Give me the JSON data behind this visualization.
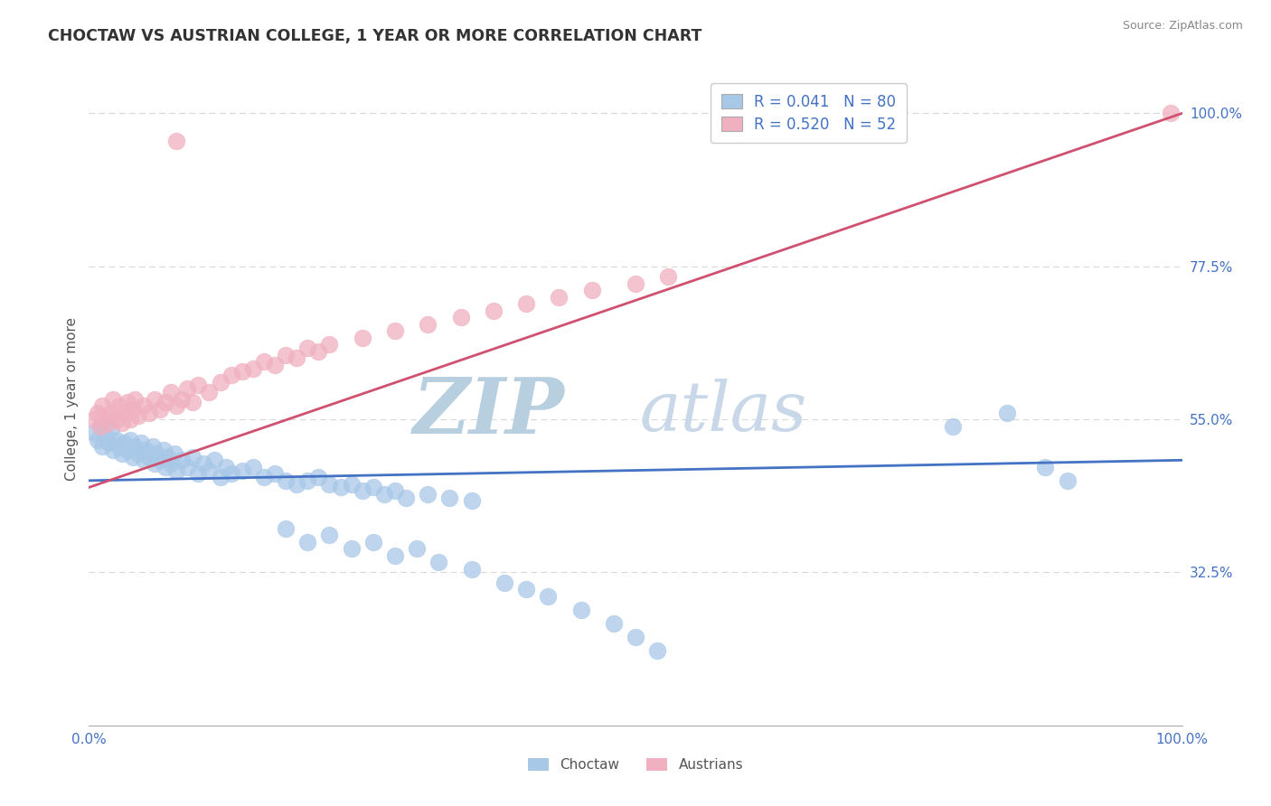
{
  "title": "CHOCTAW VS AUSTRIAN COLLEGE, 1 YEAR OR MORE CORRELATION CHART",
  "source_text": "Source: ZipAtlas.com",
  "ylabel": "College, 1 year or more",
  "xlim": [
    0.0,
    1.0
  ],
  "ylim": [
    0.1,
    1.06
  ],
  "x_tick_labels": [
    "0.0%",
    "100.0%"
  ],
  "y_ticks_right": [
    0.325,
    0.55,
    0.775,
    1.0
  ],
  "y_tick_labels_right": [
    "32.5%",
    "55.0%",
    "77.5%",
    "100.0%"
  ],
  "choctaw_color": "#a8c8e8",
  "austrians_color": "#f0b0c0",
  "choctaw_line_color": "#4472c4",
  "austrians_line_color": "#d05070",
  "legend_label_1": "R = 0.041   N = 80",
  "legend_label_2": "R = 0.520   N = 52",
  "grid_color": "#d8d8d8",
  "background_color": "#ffffff",
  "watermark_zip": "ZIP",
  "watermark_atlas": "atlas",
  "watermark_color_zip": "#b8cfe0",
  "watermark_color_atlas": "#c8d8e8",
  "bottom_legend_1": "Choctaw",
  "bottom_legend_2": "Austrians",
  "choctaw_x": [
    0.005,
    0.008,
    0.01,
    0.012,
    0.015,
    0.018,
    0.02,
    0.022,
    0.025,
    0.028,
    0.03,
    0.032,
    0.035,
    0.038,
    0.04,
    0.042,
    0.045,
    0.048,
    0.05,
    0.052,
    0.055,
    0.058,
    0.06,
    0.062,
    0.065,
    0.068,
    0.07,
    0.072,
    0.075,
    0.078,
    0.08,
    0.085,
    0.09,
    0.095,
    0.1,
    0.105,
    0.11,
    0.115,
    0.12,
    0.125,
    0.13,
    0.14,
    0.15,
    0.16,
    0.17,
    0.18,
    0.19,
    0.2,
    0.21,
    0.22,
    0.23,
    0.24,
    0.25,
    0.26,
    0.27,
    0.28,
    0.29,
    0.31,
    0.33,
    0.35,
    0.18,
    0.2,
    0.22,
    0.24,
    0.26,
    0.28,
    0.3,
    0.32,
    0.35,
    0.38,
    0.4,
    0.42,
    0.45,
    0.48,
    0.5,
    0.52,
    0.79,
    0.84,
    0.875,
    0.895
  ],
  "choctaw_y": [
    0.53,
    0.52,
    0.54,
    0.51,
    0.525,
    0.515,
    0.535,
    0.505,
    0.52,
    0.51,
    0.5,
    0.515,
    0.505,
    0.52,
    0.495,
    0.51,
    0.5,
    0.515,
    0.49,
    0.505,
    0.495,
    0.51,
    0.485,
    0.5,
    0.49,
    0.505,
    0.48,
    0.495,
    0.485,
    0.5,
    0.475,
    0.49,
    0.48,
    0.495,
    0.47,
    0.485,
    0.475,
    0.49,
    0.465,
    0.48,
    0.47,
    0.475,
    0.48,
    0.465,
    0.47,
    0.46,
    0.455,
    0.46,
    0.465,
    0.455,
    0.45,
    0.455,
    0.445,
    0.45,
    0.44,
    0.445,
    0.435,
    0.44,
    0.435,
    0.43,
    0.39,
    0.37,
    0.38,
    0.36,
    0.37,
    0.35,
    0.36,
    0.34,
    0.33,
    0.31,
    0.3,
    0.29,
    0.27,
    0.25,
    0.23,
    0.21,
    0.54,
    0.56,
    0.48,
    0.46
  ],
  "austrians_x": [
    0.005,
    0.008,
    0.01,
    0.012,
    0.015,
    0.018,
    0.02,
    0.022,
    0.025,
    0.028,
    0.03,
    0.032,
    0.035,
    0.038,
    0.04,
    0.042,
    0.045,
    0.05,
    0.055,
    0.06,
    0.065,
    0.07,
    0.075,
    0.08,
    0.085,
    0.09,
    0.095,
    0.1,
    0.11,
    0.12,
    0.13,
    0.14,
    0.15,
    0.16,
    0.17,
    0.18,
    0.19,
    0.2,
    0.21,
    0.22,
    0.25,
    0.28,
    0.31,
    0.34,
    0.37,
    0.4,
    0.43,
    0.46,
    0.5,
    0.53,
    0.08,
    0.99
  ],
  "austrians_y": [
    0.55,
    0.56,
    0.54,
    0.57,
    0.555,
    0.545,
    0.56,
    0.58,
    0.55,
    0.57,
    0.545,
    0.56,
    0.575,
    0.55,
    0.565,
    0.58,
    0.555,
    0.57,
    0.56,
    0.58,
    0.565,
    0.575,
    0.59,
    0.57,
    0.58,
    0.595,
    0.575,
    0.6,
    0.59,
    0.605,
    0.615,
    0.62,
    0.625,
    0.635,
    0.63,
    0.645,
    0.64,
    0.655,
    0.65,
    0.66,
    0.67,
    0.68,
    0.69,
    0.7,
    0.71,
    0.72,
    0.73,
    0.74,
    0.75,
    0.76,
    0.96,
    1.0
  ]
}
